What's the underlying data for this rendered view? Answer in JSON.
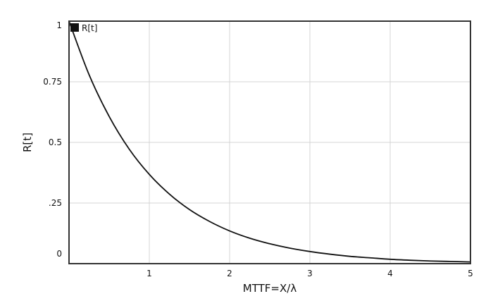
{
  "chart_data": {
    "type": "line",
    "title": "",
    "xlabel": "MTTF=X/λ",
    "ylabel": "R[t]",
    "xlim": [
      0,
      5
    ],
    "ylim": [
      0,
      1
    ],
    "x_ticks": [
      1,
      2,
      3,
      4,
      5
    ],
    "x_tick_labels": [
      "1",
      "2",
      "3",
      "4",
      "5"
    ],
    "y_ticks": [
      0,
      0.25,
      0.5,
      0.75,
      1
    ],
    "y_tick_labels": [
      "0",
      ".25",
      "0.5",
      "0.75",
      "1"
    ],
    "grid": true,
    "legend": {
      "placement": "top-left",
      "entries": [
        "R[t]"
      ]
    },
    "series": [
      {
        "name": "R[t]",
        "color": "#111111",
        "x": [
          0,
          0.25,
          0.5,
          0.75,
          1,
          1.25,
          1.5,
          1.75,
          2,
          2.25,
          2.5,
          2.75,
          3,
          3.25,
          3.5,
          3.75,
          4,
          4.25,
          4.5,
          4.75,
          5
        ],
        "y": [
          1,
          0.779,
          0.607,
          0.472,
          0.368,
          0.287,
          0.223,
          0.174,
          0.135,
          0.105,
          0.082,
          0.064,
          0.05,
          0.039,
          0.03,
          0.024,
          0.018,
          0.014,
          0.011,
          0.009,
          0.007
        ]
      }
    ],
    "colors": {
      "grid": "#d4d4d4",
      "frame": "#333333",
      "line": "#111111"
    }
  }
}
